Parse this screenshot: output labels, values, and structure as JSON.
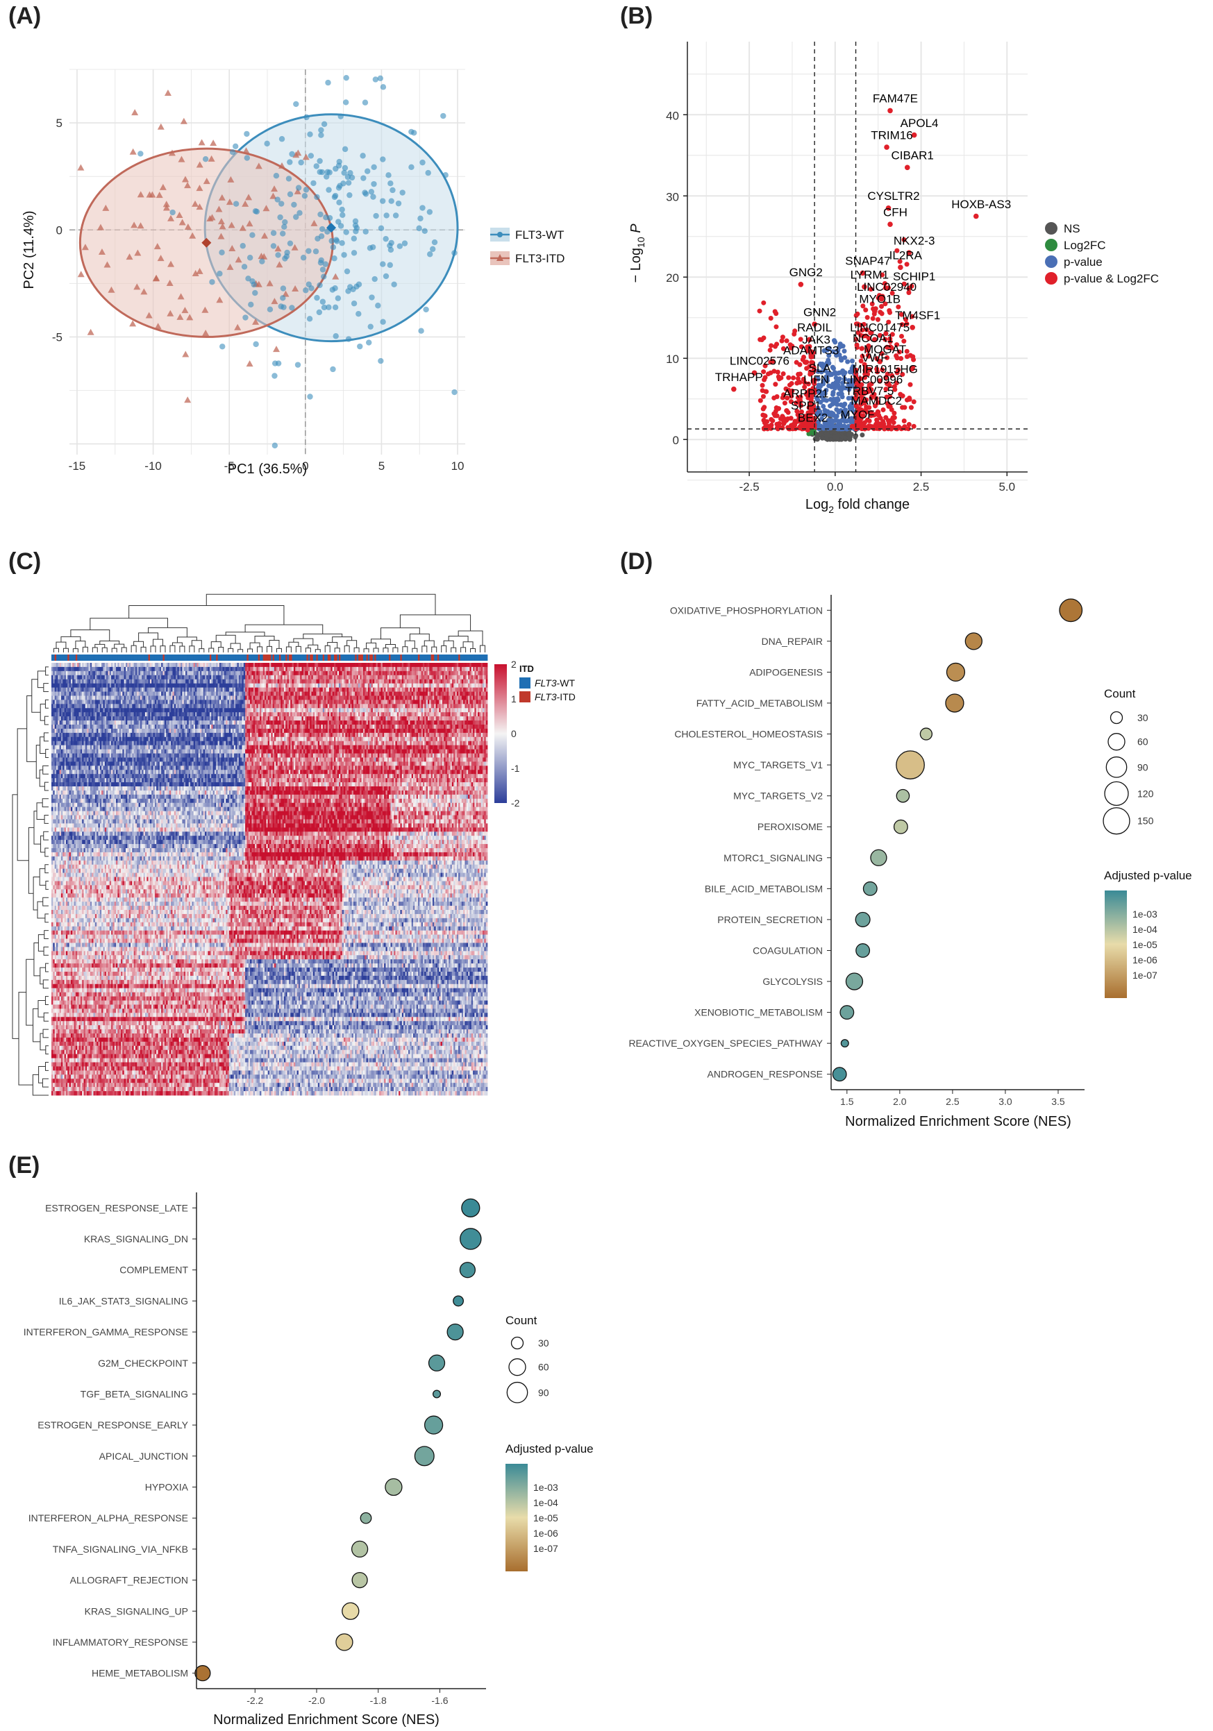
{
  "panel_labels": {
    "a": "(A)",
    "b": "(B)",
    "c": "(C)",
    "d": "(D)",
    "e": "(E)"
  },
  "colors": {
    "wt": "#3c8dbc",
    "itd": "#c0695a",
    "itd_fill": "#e9c4bc",
    "wt_fill": "#c9dfeb",
    "ns": "#555555",
    "log2fc": "#2e8b3f",
    "pval": "#4a6fb5",
    "both": "#e0202a",
    "heat_low": "#2c3e9a",
    "heat_mid": "#f2f2f2",
    "heat_high": "#c8102e",
    "grad_low": "#a86e2e",
    "grad_mid": "#e8dcaa",
    "grad_high": "#3a8a96"
  },
  "chart_data": [
    {
      "id": "A",
      "type": "scatter",
      "title": "",
      "xlabel": "PC1 (36.5%)",
      "ylabel": "PC2 (11.4%)",
      "xlim": [
        -15.5,
        10.5
      ],
      "ylim": [
        -10.5,
        7.5
      ],
      "xticks": [
        -15,
        -10,
        -5,
        0,
        5,
        10
      ],
      "xtick_labels": [
        "-15",
        "-10",
        "-5",
        "0",
        "5",
        "10"
      ],
      "yticks": [
        -5,
        0,
        5
      ],
      "ytick_labels": [
        "-5",
        "0",
        "5"
      ],
      "legend": [
        {
          "name": "FLT3-WT"
        },
        {
          "name": "FLT3-ITD"
        }
      ],
      "series": [
        {
          "name": "FLT3-WT",
          "centroid": [
            1.7,
            0.1
          ],
          "ellipse_radius": [
            8.3,
            5.3
          ],
          "n_points": 230
        },
        {
          "name": "FLT3-ITD",
          "centroid": [
            -6.5,
            -0.6
          ],
          "ellipse_radius": [
            8.3,
            4.4
          ],
          "n_points": 110
        }
      ]
    },
    {
      "id": "B",
      "type": "scatter",
      "xlabel": "Log2 fold change",
      "ylabel": "-Log10 P",
      "xlim": [
        -4.3,
        5.6
      ],
      "ylim": [
        -4,
        49
      ],
      "xticks": [
        -2.5,
        0,
        2.5,
        5
      ],
      "xtick_labels": [
        "-2.5",
        "0.0",
        "2.5",
        "5.0"
      ],
      "yticks": [
        0,
        10,
        20,
        30,
        40
      ],
      "ytick_labels": [
        "0",
        "10",
        "20",
        "30",
        "40"
      ],
      "fc_cutoff": [
        -0.6,
        0.6
      ],
      "p_cutoff": 1.3,
      "legend": [
        "NS",
        "Log2FC",
        "p-value",
        "p-value & Log2FC"
      ],
      "labels": [
        {
          "text": "FAM47E",
          "x": 1.75,
          "y": 41.5
        },
        {
          "text": "APOL4",
          "x": 2.45,
          "y": 38.5
        },
        {
          "text": "TRIM16",
          "x": 1.65,
          "y": 37.0
        },
        {
          "text": "CIBAR1",
          "x": 2.25,
          "y": 34.5
        },
        {
          "text": "CYSLTR2",
          "x": 1.7,
          "y": 29.5
        },
        {
          "text": "HOXB-AS3",
          "x": 4.25,
          "y": 28.5
        },
        {
          "text": "CFH",
          "x": 1.75,
          "y": 27.5
        },
        {
          "text": "NKX2-3",
          "x": 2.3,
          "y": 24.0
        },
        {
          "text": "IL2RA",
          "x": 2.05,
          "y": 22.2
        },
        {
          "text": "SNAP47",
          "x": 0.95,
          "y": 21.5
        },
        {
          "text": "GNG2",
          "x": -0.85,
          "y": 20.1
        },
        {
          "text": "LYRM1",
          "x": 1.0,
          "y": 19.8
        },
        {
          "text": "SCHIP1",
          "x": 2.3,
          "y": 19.6
        },
        {
          "text": "LINC02940",
          "x": 1.5,
          "y": 18.3
        },
        {
          "text": "MYO1B",
          "x": 1.3,
          "y": 16.8
        },
        {
          "text": "GNN2",
          "x": -0.45,
          "y": 15.2
        },
        {
          "text": "TM4SF1",
          "x": 2.4,
          "y": 14.8
        },
        {
          "text": "RADIL",
          "x": -0.6,
          "y": 13.3
        },
        {
          "text": "LINC01475",
          "x": 1.3,
          "y": 13.3
        },
        {
          "text": "JAK3",
          "x": -0.55,
          "y": 11.8
        },
        {
          "text": "NCOA1",
          "x": 1.1,
          "y": 12.0
        },
        {
          "text": "ADAMTS3",
          "x": -0.7,
          "y": 10.5
        },
        {
          "text": "MOGAT",
          "x": 1.45,
          "y": 10.6
        },
        {
          "text": "VWF",
          "x": 1.15,
          "y": 9.6
        },
        {
          "text": "LINC02576",
          "x": -2.2,
          "y": 9.2
        },
        {
          "text": "SLA",
          "x": -0.45,
          "y": 8.3
        },
        {
          "text": "MIR1915HG",
          "x": 1.45,
          "y": 8.2
        },
        {
          "text": "TRHAPP",
          "x": -2.8,
          "y": 7.2
        },
        {
          "text": "LIFN",
          "x": -0.55,
          "y": 6.9
        },
        {
          "text": "LINC00996",
          "x": 1.1,
          "y": 6.9
        },
        {
          "text": "TRBV7-5",
          "x": 1.0,
          "y": 5.5
        },
        {
          "text": "ARPP21",
          "x": -0.85,
          "y": 5.2
        },
        {
          "text": "MAMDC2",
          "x": 1.2,
          "y": 4.3
        },
        {
          "text": "SPP1",
          "x": -0.85,
          "y": 3.7
        },
        {
          "text": "MYOF",
          "x": 0.65,
          "y": 2.6
        },
        {
          "text": "BEX2",
          "x": -0.65,
          "y": 2.2
        }
      ]
    },
    {
      "id": "C",
      "type": "heatmap",
      "annotation_title": "ITD",
      "annotation_levels": [
        "FLT3-WT",
        "FLT3-ITD"
      ],
      "annotation_prefix": "FLT3",
      "annotation_suffixes": [
        "-WT",
        "-ITD"
      ],
      "scale_ticks": [
        2,
        1,
        0,
        -1,
        -2
      ],
      "scale_labels": [
        "2",
        "1",
        "0",
        "-1",
        "-2"
      ],
      "n_columns": 270,
      "n_rows": 105
    },
    {
      "id": "D",
      "type": "scatter",
      "xlabel": "Normalized Enrichment Score (NES)",
      "xlim": [
        1.35,
        3.75
      ],
      "xticks": [
        1.5,
        2.0,
        2.5,
        3.0,
        3.5
      ],
      "xtick_labels": [
        "1.5",
        "2.0",
        "2.5",
        "3.0",
        "3.5"
      ],
      "categories": [
        "OXIDATIVE_PHOSPHORYLATION",
        "DNA_REPAIR",
        "ADIPOGENESIS",
        "FATTY_ACID_METABOLISM",
        "CHOLESTEROL_HOMEOSTASIS",
        "MYC_TARGETS_V1",
        "MYC_TARGETS_V2",
        "PEROXISOME",
        "MTORC1_SIGNALING",
        "BILE_ACID_METABOLISM",
        "PROTEIN_SECRETION",
        "COAGULATION",
        "GLYCOLYSIS",
        "XENOBIOTIC_METABOLISM",
        "REACTIVE_OXYGEN_SPECIES_PATHWAY",
        "ANDROGEN_RESPONSE"
      ],
      "nes": [
        3.62,
        2.7,
        2.53,
        2.52,
        2.25,
        2.1,
        2.03,
        2.01,
        1.8,
        1.72,
        1.65,
        1.65,
        1.57,
        1.5,
        1.48,
        1.43
      ],
      "count": [
        110,
        60,
        70,
        70,
        30,
        170,
        35,
        40,
        55,
        40,
        45,
        40,
        60,
        40,
        12,
        40
      ],
      "log10_padj": [
        -7.8,
        -7.4,
        -7.2,
        -7.3,
        -4.6,
        -6.0,
        -4.3,
        -4.6,
        -4.0,
        -3.4,
        -3.3,
        -3.2,
        -3.5,
        -3.3,
        -2.9,
        -2.7
      ],
      "count_legend": {
        "title": "Count",
        "values": [
          30,
          60,
          90,
          120,
          150
        ],
        "labels": [
          "30",
          "60",
          "90",
          "120",
          "150"
        ]
      },
      "color_legend": {
        "title": "Adjusted p-value",
        "labels": [
          "1e-03",
          "1e-04",
          "1e-05",
          "1e-06",
          "1e-07"
        ]
      }
    },
    {
      "id": "E",
      "type": "scatter",
      "xlabel": "Normalized Enrichment Score (NES)",
      "xlim": [
        -2.39,
        -1.45
      ],
      "xticks": [
        -2.2,
        -2.0,
        -1.8,
        -1.6
      ],
      "xtick_labels": [
        "-2.2",
        "-2.0",
        "-1.8",
        "-1.6"
      ],
      "categories": [
        "ESTROGEN_RESPONSE_LATE",
        "KRAS_SIGNALING_DN",
        "COMPLEMENT",
        "IL6_JAK_STAT3_SIGNALING",
        "INTERFERON_GAMMA_RESPONSE",
        "G2M_CHECKPOINT",
        "TGF_BETA_SIGNALING",
        "ESTROGEN_RESPONSE_EARLY",
        "APICAL_JUNCTION",
        "HYPOXIA",
        "INTERFERON_ALPHA_RESPONSE",
        "TNFA_SIGNALING_VIA_NFKB",
        "ALLOGRAFT_REJECTION",
        "KRAS_SIGNALING_UP",
        "INFLAMMATORY_RESPONSE",
        "HEME_METABOLISM"
      ],
      "nes": [
        -1.5,
        -1.5,
        -1.51,
        -1.54,
        -1.55,
        -1.61,
        -1.61,
        -1.62,
        -1.65,
        -1.75,
        -1.84,
        -1.86,
        -1.86,
        -1.89,
        -1.91,
        -2.37
      ],
      "count": [
        70,
        95,
        50,
        22,
        55,
        55,
        12,
        70,
        80,
        60,
        25,
        55,
        50,
        60,
        60,
        50
      ],
      "log10_padj": [
        -2.4,
        -2.6,
        -2.7,
        -2.6,
        -2.8,
        -3.0,
        -3.0,
        -3.2,
        -3.4,
        -4.2,
        -3.8,
        -4.4,
        -4.5,
        -5.3,
        -5.6,
        -7.9
      ],
      "count_legend": {
        "title": "Count",
        "values": [
          30,
          60,
          90
        ],
        "labels": [
          "30",
          "60",
          "90"
        ]
      },
      "color_legend": {
        "title": "Adjusted p-value",
        "labels": [
          "1e-03",
          "1e-04",
          "1e-05",
          "1e-06",
          "1e-07"
        ]
      }
    }
  ]
}
